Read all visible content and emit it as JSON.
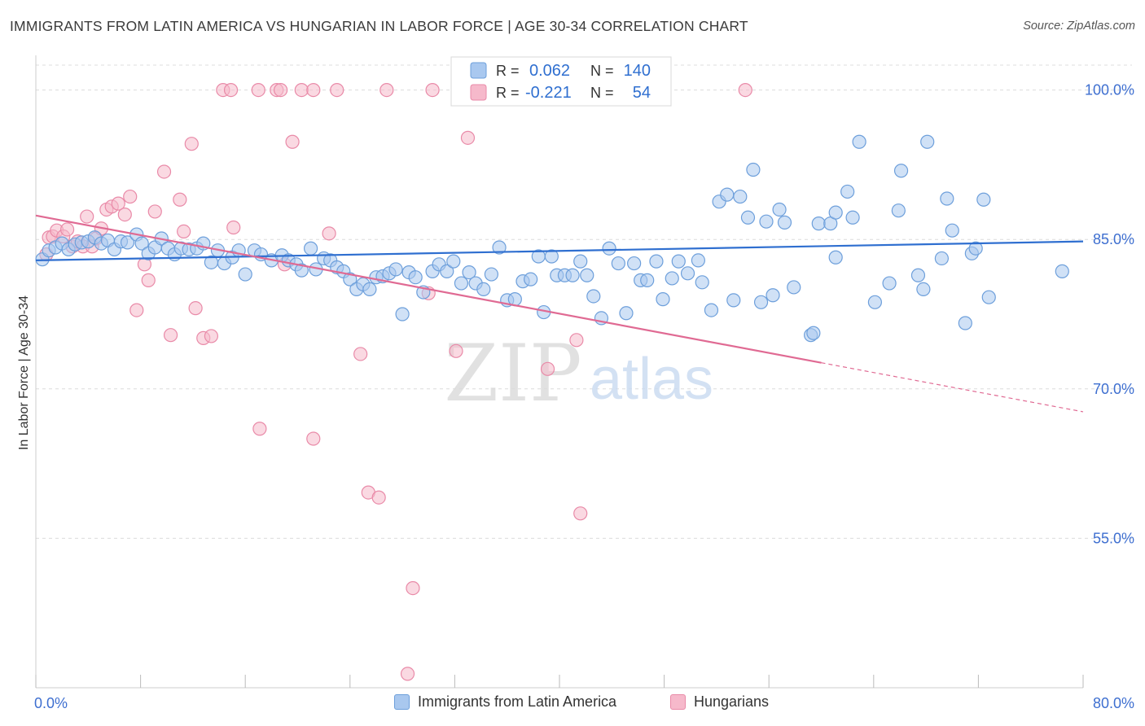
{
  "header": {
    "title": "IMMIGRANTS FROM LATIN AMERICA VS HUNGARIAN IN LABOR FORCE | AGE 30-34 CORRELATION CHART",
    "source": "Source: ZipAtlas.com"
  },
  "watermark": {
    "zip": "ZIP",
    "atlas": "atlas"
  },
  "colors": {
    "blue_fill": "#a9c8ef",
    "blue_stroke": "#6d9fdb",
    "blue_line": "#2f6fd0",
    "pink_fill": "#f6b9cb",
    "pink_stroke": "#e98aa8",
    "pink_line": "#e06a93",
    "tick_label": "#3e6fd0",
    "grid": "#dcdcdc"
  },
  "legend_top": {
    "rows": [
      {
        "r_label": "R =",
        "r_value": "0.062",
        "n_label": "N =",
        "n_value": "140"
      },
      {
        "r_label": "R =",
        "r_value": "-0.221",
        "n_label": "N =",
        "n_value": "54"
      }
    ]
  },
  "legend_bottom": {
    "items": [
      {
        "label": "Immigrants from Latin America"
      },
      {
        "label": "Hungarians"
      }
    ]
  },
  "chart_data": {
    "type": "scatter",
    "title": "IMMIGRANTS FROM LATIN AMERICA VS HUNGARIAN IN LABOR FORCE | AGE 30-34 CORRELATION CHART",
    "xlabel": "",
    "ylabel": "In Labor Force | Age 30-34",
    "xlim": [
      0,
      80
    ],
    "ylim": [
      40,
      102.5
    ],
    "x_tick_labels": [
      {
        "value": 0,
        "label": "0.0%"
      },
      {
        "value": 80,
        "label": "80.0%"
      }
    ],
    "y_tick_labels": [
      {
        "value": 100,
        "label": "100.0%"
      },
      {
        "value": 85,
        "label": "85.0%"
      },
      {
        "value": 70,
        "label": "70.0%"
      },
      {
        "value": 55,
        "label": "55.0%"
      }
    ],
    "x_minor_ticks": [
      0,
      8,
      16,
      24,
      32,
      40,
      48,
      56,
      64,
      72,
      80
    ],
    "grid": "horizontal dashed",
    "legend_placement": "top-center",
    "series": [
      {
        "name": "Immigrants from Latin America",
        "r": 0.062,
        "n": 140,
        "trend": {
          "x": [
            0,
            80
          ],
          "y": [
            82.9,
            84.8
          ],
          "dashed_from_x": null
        },
        "points": [
          [
            0.5,
            83.0
          ],
          [
            1.0,
            83.9
          ],
          [
            1.5,
            84.2
          ],
          [
            2.0,
            84.6
          ],
          [
            2.5,
            84.0
          ],
          [
            3.0,
            84.5
          ],
          [
            3.5,
            84.7
          ],
          [
            4.0,
            84.8
          ],
          [
            4.5,
            85.2
          ],
          [
            5.0,
            84.6
          ],
          [
            5.5,
            84.9
          ],
          [
            6.0,
            84.0
          ],
          [
            6.5,
            84.8
          ],
          [
            7.0,
            84.7
          ],
          [
            7.7,
            85.5
          ],
          [
            8.1,
            84.6
          ],
          [
            8.6,
            83.6
          ],
          [
            9.1,
            84.2
          ],
          [
            9.6,
            85.1
          ],
          [
            10.1,
            84.1
          ],
          [
            10.6,
            83.5
          ],
          [
            11.1,
            84.1
          ],
          [
            11.7,
            84.0
          ],
          [
            12.3,
            84.1
          ],
          [
            12.8,
            84.6
          ],
          [
            13.4,
            82.7
          ],
          [
            13.9,
            83.9
          ],
          [
            14.4,
            82.6
          ],
          [
            15.0,
            83.2
          ],
          [
            15.5,
            83.9
          ],
          [
            16.0,
            81.5
          ],
          [
            16.7,
            83.9
          ],
          [
            17.2,
            83.5
          ],
          [
            18.0,
            82.9
          ],
          [
            18.8,
            83.4
          ],
          [
            19.3,
            82.9
          ],
          [
            19.9,
            82.5
          ],
          [
            20.3,
            81.9
          ],
          [
            21.0,
            84.1
          ],
          [
            21.4,
            82.0
          ],
          [
            22.0,
            83.1
          ],
          [
            22.5,
            82.9
          ],
          [
            23.0,
            82.2
          ],
          [
            23.5,
            81.8
          ],
          [
            24.0,
            81.0
          ],
          [
            24.5,
            80.0
          ],
          [
            25.0,
            80.5
          ],
          [
            25.5,
            80.0
          ],
          [
            26.0,
            81.2
          ],
          [
            26.5,
            81.3
          ],
          [
            27.0,
            81.6
          ],
          [
            27.5,
            82.0
          ],
          [
            28.0,
            77.5
          ],
          [
            28.5,
            81.7
          ],
          [
            29.0,
            81.2
          ],
          [
            29.6,
            79.7
          ],
          [
            30.3,
            81.8
          ],
          [
            30.8,
            82.5
          ],
          [
            31.4,
            81.8
          ],
          [
            31.9,
            82.8
          ],
          [
            32.5,
            80.6
          ],
          [
            33.1,
            81.7
          ],
          [
            33.6,
            80.6
          ],
          [
            34.2,
            80.0
          ],
          [
            34.8,
            81.5
          ],
          [
            35.4,
            84.2
          ],
          [
            36.0,
            78.9
          ],
          [
            36.6,
            79.0
          ],
          [
            37.2,
            80.8
          ],
          [
            37.8,
            81.0
          ],
          [
            38.4,
            83.3
          ],
          [
            38.8,
            77.7
          ],
          [
            39.4,
            83.3
          ],
          [
            39.8,
            81.4
          ],
          [
            40.4,
            81.4
          ],
          [
            41.0,
            81.4
          ],
          [
            41.6,
            82.8
          ],
          [
            42.1,
            81.4
          ],
          [
            42.6,
            79.3
          ],
          [
            43.2,
            77.1
          ],
          [
            43.8,
            84.1
          ],
          [
            44.5,
            82.6
          ],
          [
            45.1,
            77.6
          ],
          [
            45.7,
            82.6
          ],
          [
            46.2,
            80.9
          ],
          [
            46.7,
            80.9
          ],
          [
            47.4,
            82.8
          ],
          [
            47.9,
            79.0
          ],
          [
            48.6,
            81.1
          ],
          [
            49.1,
            82.8
          ],
          [
            49.8,
            81.6
          ],
          [
            50.6,
            82.9
          ],
          [
            50.9,
            80.7
          ],
          [
            51.6,
            77.9
          ],
          [
            52.2,
            88.8
          ],
          [
            52.8,
            89.5
          ],
          [
            53.3,
            78.9
          ],
          [
            53.8,
            89.3
          ],
          [
            54.4,
            87.2
          ],
          [
            54.8,
            92.0
          ],
          [
            55.4,
            78.7
          ],
          [
            55.8,
            86.8
          ],
          [
            56.3,
            79.4
          ],
          [
            56.8,
            88.0
          ],
          [
            57.2,
            86.7
          ],
          [
            57.9,
            80.2
          ],
          [
            59.2,
            75.4
          ],
          [
            59.4,
            75.6
          ],
          [
            59.8,
            86.6
          ],
          [
            60.7,
            86.6
          ],
          [
            61.1,
            87.7
          ],
          [
            61.1,
            83.2
          ],
          [
            62.0,
            89.8
          ],
          [
            62.4,
            87.2
          ],
          [
            62.9,
            94.8
          ],
          [
            64.1,
            78.7
          ],
          [
            65.2,
            80.6
          ],
          [
            65.9,
            87.9
          ],
          [
            66.1,
            91.9
          ],
          [
            67.4,
            81.4
          ],
          [
            67.8,
            80.0
          ],
          [
            68.1,
            94.8
          ],
          [
            69.2,
            83.1
          ],
          [
            69.6,
            89.1
          ],
          [
            70.0,
            85.9
          ],
          [
            71.0,
            76.6
          ],
          [
            71.5,
            83.6
          ],
          [
            71.8,
            84.1
          ],
          [
            72.4,
            89.0
          ],
          [
            72.8,
            79.2
          ],
          [
            78.4,
            81.8
          ]
        ]
      },
      {
        "name": "Hungarians",
        "r": -0.221,
        "n": 54,
        "trend": {
          "x": [
            0,
            80
          ],
          "y": [
            87.4,
            67.7
          ],
          "dashed_from_x": 60.0
        },
        "points": [
          [
            0.8,
            83.5
          ],
          [
            1.0,
            85.2
          ],
          [
            1.3,
            85.3
          ],
          [
            1.6,
            85.9
          ],
          [
            2.1,
            85.3
          ],
          [
            2.4,
            86.0
          ],
          [
            2.8,
            84.3
          ],
          [
            3.2,
            84.8
          ],
          [
            3.6,
            84.3
          ],
          [
            3.9,
            87.3
          ],
          [
            4.3,
            84.3
          ],
          [
            4.6,
            85.1
          ],
          [
            5.0,
            86.1
          ],
          [
            5.4,
            88.0
          ],
          [
            5.8,
            88.3
          ],
          [
            6.3,
            88.6
          ],
          [
            6.8,
            87.5
          ],
          [
            7.2,
            89.3
          ],
          [
            7.7,
            77.9
          ],
          [
            8.3,
            82.5
          ],
          [
            8.6,
            80.9
          ],
          [
            9.1,
            87.8
          ],
          [
            9.8,
            91.8
          ],
          [
            10.3,
            75.4
          ],
          [
            11.0,
            89.0
          ],
          [
            11.3,
            85.8
          ],
          [
            11.9,
            94.6
          ],
          [
            12.2,
            78.1
          ],
          [
            12.8,
            75.1
          ],
          [
            13.4,
            75.3
          ],
          [
            14.3,
            100.0
          ],
          [
            14.9,
            100.0
          ],
          [
            15.1,
            86.2
          ],
          [
            17.0,
            100.0
          ],
          [
            17.1,
            66.0
          ],
          [
            18.4,
            100.0
          ],
          [
            18.7,
            100.0
          ],
          [
            19.0,
            82.5
          ],
          [
            19.6,
            94.8
          ],
          [
            20.3,
            100.0
          ],
          [
            21.2,
            100.0
          ],
          [
            21.2,
            65.0
          ],
          [
            22.4,
            85.6
          ],
          [
            23.0,
            100.0
          ],
          [
            24.8,
            73.5
          ],
          [
            25.4,
            59.6
          ],
          [
            26.2,
            59.1
          ],
          [
            26.8,
            100.0
          ],
          [
            28.4,
            41.4
          ],
          [
            28.8,
            50.0
          ],
          [
            30.0,
            79.6
          ],
          [
            30.3,
            100.0
          ],
          [
            32.1,
            73.8
          ],
          [
            33.0,
            95.2
          ],
          [
            39.1,
            72.0
          ],
          [
            41.3,
            74.9
          ],
          [
            41.6,
            57.5
          ],
          [
            54.2,
            100.0
          ]
        ]
      }
    ]
  }
}
